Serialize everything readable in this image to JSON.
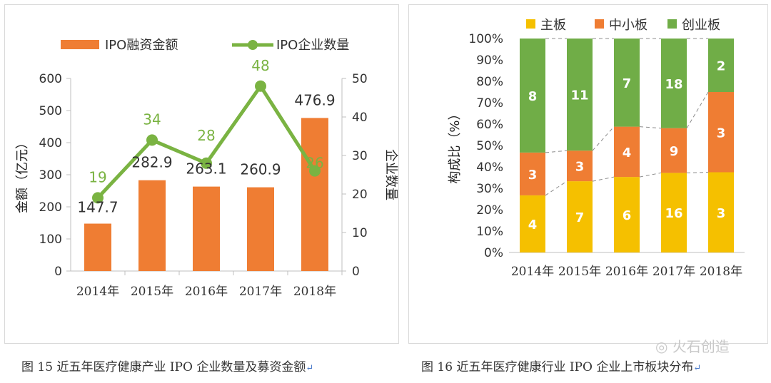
{
  "chart_data": [
    {
      "type": "bar+line",
      "title": "",
      "categories": [
        "2014年",
        "2015年",
        "2016年",
        "2017年",
        "2018年"
      ],
      "series": [
        {
          "name": "IPO融资金额",
          "kind": "bar",
          "axis": "left",
          "color": "#ef7d33",
          "values": [
            147.7,
            282.9,
            263.1,
            260.9,
            476.9
          ],
          "labels": [
            "147.7",
            "282.9",
            "263.1",
            "260.9",
            "476.9"
          ]
        },
        {
          "name": "IPO企业数量",
          "kind": "line",
          "axis": "right",
          "color": "#7ab342",
          "values": [
            19,
            34,
            28,
            48,
            26
          ],
          "labels": [
            "19",
            "34",
            "28",
            "48",
            "26"
          ]
        }
      ],
      "ylabel": "金额（亿元）",
      "y2label": "企业数量",
      "ylim": [
        0,
        600
      ],
      "y2lim": [
        0,
        50
      ],
      "yticks": [
        "0",
        "100",
        "200",
        "300",
        "400",
        "500",
        "600"
      ],
      "y2ticks": [
        "0",
        "10",
        "20",
        "30",
        "40",
        "50"
      ],
      "legend_position": "top"
    },
    {
      "type": "bar",
      "stacked": true,
      "percent": true,
      "categories": [
        "2014年",
        "2015年",
        "2016年",
        "2017年",
        "2018年"
      ],
      "series": [
        {
          "name": "主板",
          "color": "#f5c000",
          "counts": [
            4,
            7,
            6,
            16,
            3
          ],
          "shares": [
            26.7,
            33.3,
            35.3,
            37.2,
            37.5
          ],
          "labels": [
            "4",
            "7",
            "6",
            "16",
            "3"
          ]
        },
        {
          "name": "中小板",
          "color": "#ef7d33",
          "counts": [
            3,
            3,
            4,
            9,
            3
          ],
          "shares": [
            20.0,
            14.3,
            23.5,
            20.9,
            37.5
          ],
          "labels": [
            "3",
            "3",
            "4",
            "9",
            "3"
          ]
        },
        {
          "name": "创业板",
          "color": "#70ad47",
          "counts": [
            8,
            11,
            7,
            18,
            2
          ],
          "shares": [
            53.3,
            52.4,
            41.2,
            41.9,
            25.0
          ],
          "labels": [
            "8",
            "11",
            "7",
            "18",
            "2"
          ]
        }
      ],
      "ylabel": "构成比（%）",
      "ylim": [
        0,
        100
      ],
      "yticks": [
        "0%",
        "10%",
        "20%",
        "30%",
        "40%",
        "50%",
        "60%",
        "70%",
        "80%",
        "90%",
        "100%"
      ],
      "legend_position": "top"
    }
  ],
  "captions": {
    "left": "图 15   近五年医疗健康产业 IPO 企业数量及募资金额",
    "right": "图 16   近五年医疗健康行业 IPO 企业上市板块分布"
  },
  "watermark": "火石创造"
}
